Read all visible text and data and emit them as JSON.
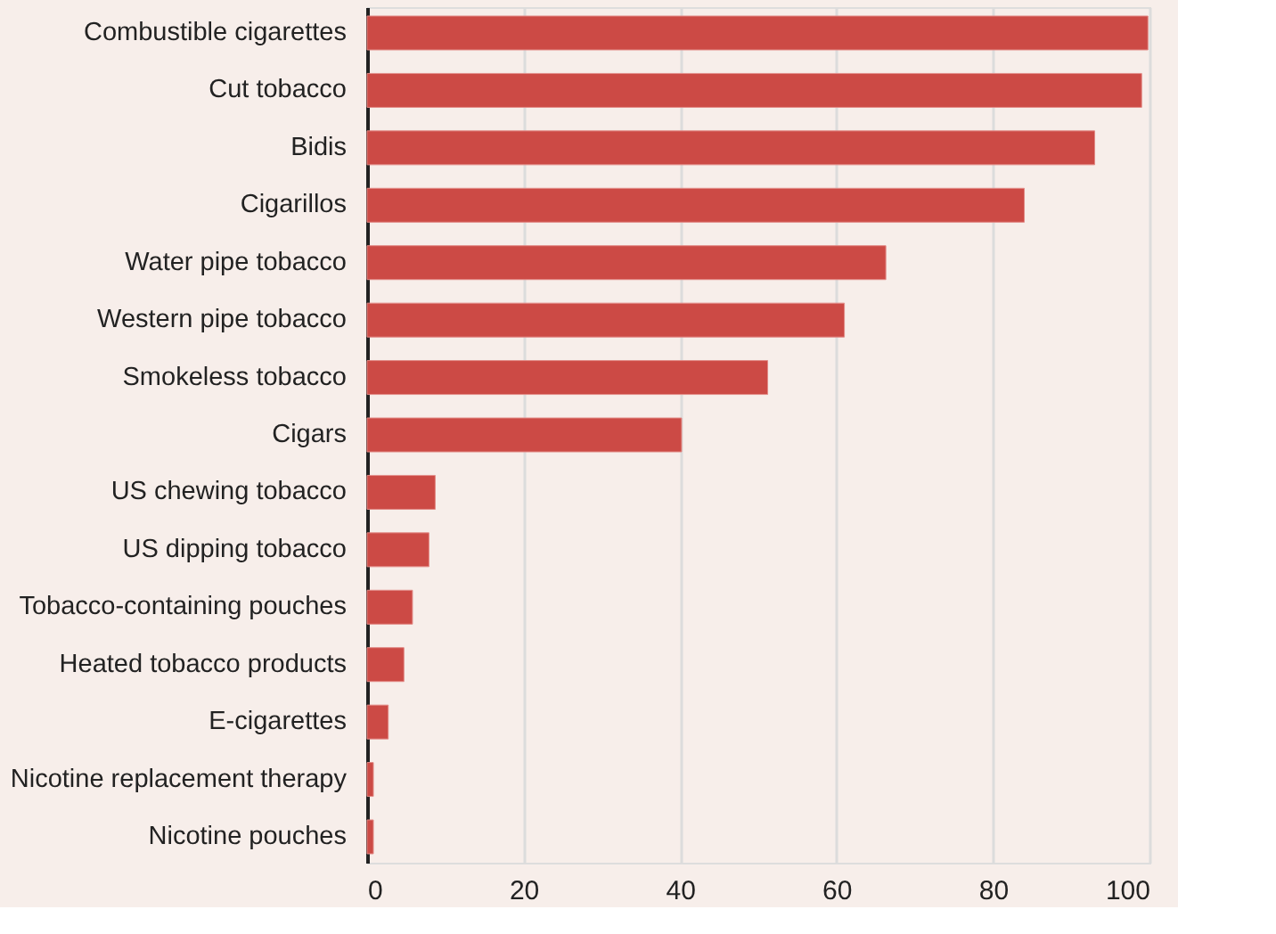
{
  "chart_data": {
    "type": "bar",
    "orientation": "horizontal",
    "categories": [
      "Combustible cigarettes",
      "Cut tobacco",
      "Bidis",
      "Cigarillos",
      "Water pipe tobacco",
      "Western pipe tobacco",
      "Smokeless tobacco",
      "Cigars",
      "US chewing tobacco",
      "US dipping tobacco",
      "Tobacco-containing pouches",
      "Heated tobacco products",
      "E-cigarettes",
      "Nicotine replacement therapy",
      "Nicotine pouches"
    ],
    "values": [
      99.8,
      99,
      93,
      84,
      66.3,
      61,
      51.2,
      40.2,
      8.7,
      7.9,
      5.8,
      4.7,
      2.7,
      0.8,
      0.8
    ],
    "color": "#cc4a45",
    "xlim": [
      0,
      100
    ],
    "xticks": [
      0,
      20,
      40,
      60,
      80,
      100
    ],
    "grid": "x"
  }
}
